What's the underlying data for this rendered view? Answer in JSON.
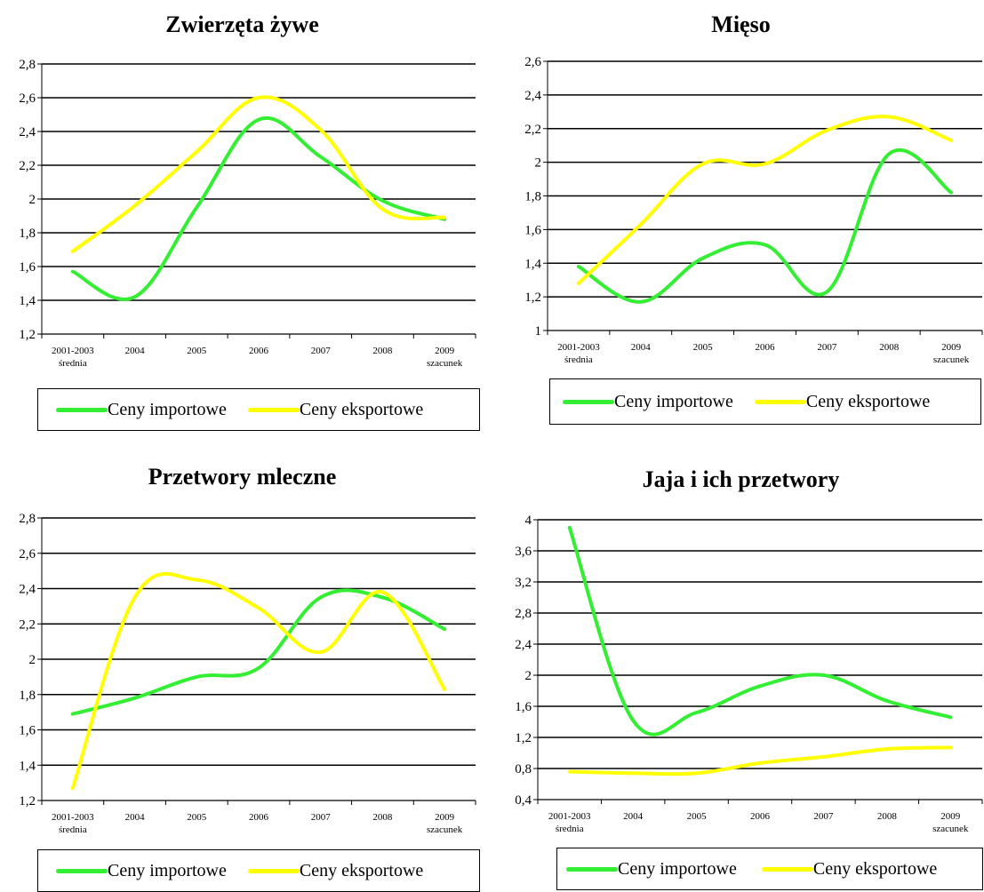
{
  "colors": {
    "import": "#33ee33",
    "export": "#ffff00"
  },
  "chart_data": [
    {
      "type": "line",
      "title": "Zwierzęta żywe",
      "categories": [
        "2001-2003 średnia",
        "2004",
        "2005",
        "2006",
        "2007",
        "2008",
        "2009 szacunek"
      ],
      "category_lines": [
        [
          "2001-2003",
          "średnia"
        ],
        [
          "2004"
        ],
        [
          "2005"
        ],
        [
          "2006"
        ],
        [
          "2007"
        ],
        [
          "2008"
        ],
        [
          "2009",
          "szacunek"
        ]
      ],
      "ylim": [
        1.2,
        2.8
      ],
      "yticks": [
        "1,2",
        "1,4",
        "1,6",
        "1,8",
        "2",
        "2,2",
        "2,4",
        "2,6",
        "2,8"
      ],
      "series": [
        {
          "name": "Ceny importowe",
          "color": "#33ee33",
          "values": [
            1.57,
            1.42,
            1.95,
            2.47,
            2.25,
            1.99,
            1.88
          ]
        },
        {
          "name": "Ceny eksportowe",
          "color": "#ffff00",
          "values": [
            1.69,
            1.96,
            2.28,
            2.6,
            2.41,
            1.94,
            1.89
          ]
        }
      ],
      "legend": "bottom"
    },
    {
      "type": "line",
      "title": "Mięso",
      "categories": [
        "2001-2003 średnia",
        "2004",
        "2005",
        "2006",
        "2007",
        "2008",
        "2009 szacunek"
      ],
      "category_lines": [
        [
          "2001-2003",
          "średnia"
        ],
        [
          "2004"
        ],
        [
          "2005"
        ],
        [
          "2006"
        ],
        [
          "2007"
        ],
        [
          "2008"
        ],
        [
          "2009",
          "szacunek"
        ]
      ],
      "ylim": [
        1,
        2.6
      ],
      "yticks": [
        "1",
        "1,2",
        "1,4",
        "1,6",
        "1,8",
        "2",
        "2,2",
        "2,4",
        "2,6"
      ],
      "series": [
        {
          "name": "Ceny importowe",
          "color": "#33ee33",
          "values": [
            1.38,
            1.17,
            1.43,
            1.51,
            1.23,
            2.05,
            1.82
          ]
        },
        {
          "name": "Ceny eksportowe",
          "color": "#ffff00",
          "values": [
            1.28,
            1.63,
            1.99,
            1.99,
            2.19,
            2.27,
            2.13
          ]
        }
      ],
      "legend": "bottom"
    },
    {
      "type": "line",
      "title": "Przetwory mleczne",
      "categories": [
        "2001-2003 średnia",
        "2004",
        "2005",
        "2006",
        "2007",
        "2008",
        "2009 szacunek"
      ],
      "category_lines": [
        [
          "2001-2003",
          "średnia"
        ],
        [
          "2004"
        ],
        [
          "2005"
        ],
        [
          "2006"
        ],
        [
          "2007"
        ],
        [
          "2008"
        ],
        [
          "2009",
          "szacunek"
        ]
      ],
      "ylim": [
        1.2,
        2.8
      ],
      "yticks": [
        "1,2",
        "1,4",
        "1,6",
        "1,8",
        "2",
        "2,2",
        "2,4",
        "2,6",
        "2,8"
      ],
      "series": [
        {
          "name": "Ceny importowe",
          "color": "#33ee33",
          "values": [
            1.69,
            1.78,
            1.9,
            1.95,
            2.35,
            2.35,
            2.17
          ]
        },
        {
          "name": "Ceny eksportowe",
          "color": "#ffff00",
          "values": [
            1.27,
            2.35,
            2.45,
            2.29,
            2.04,
            2.38,
            1.83
          ]
        }
      ],
      "legend": "bottom"
    },
    {
      "type": "line",
      "title": "Jaja i ich przetwory",
      "categories": [
        "2001-2003 średnia",
        "2004",
        "2005",
        "2006",
        "2007",
        "2008",
        "2009 szacunek"
      ],
      "category_lines": [
        [
          "2001-2003",
          "średnia"
        ],
        [
          "2004"
        ],
        [
          "2005"
        ],
        [
          "2006"
        ],
        [
          "2007"
        ],
        [
          "2008"
        ],
        [
          "2009",
          "szacunek"
        ]
      ],
      "ylim": [
        0.4,
        4
      ],
      "yticks": [
        "0,4",
        "0,8",
        "1,2",
        "1,6",
        "2",
        "2,4",
        "2,8",
        "3,2",
        "3,6",
        "4"
      ],
      "series": [
        {
          "name": "Ceny importowe",
          "color": "#33ee33",
          "values": [
            3.9,
            1.42,
            1.52,
            1.86,
            2.0,
            1.67,
            1.46
          ]
        },
        {
          "name": "Ceny eksportowe",
          "color": "#ffff00",
          "values": [
            0.76,
            0.74,
            0.74,
            0.87,
            0.95,
            1.05,
            1.07
          ]
        }
      ],
      "legend": "bottom"
    }
  ]
}
